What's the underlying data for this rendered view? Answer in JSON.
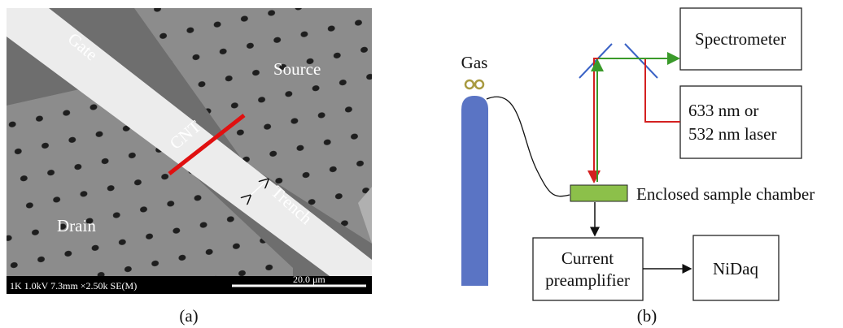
{
  "panel_a": {
    "labels": {
      "gate": "Gate",
      "source": "Source",
      "cnt": "CNT",
      "drain": "Drain",
      "trench": "Trench"
    },
    "info_bar": "1K 1.0kV 7.3mm ×2.50k SE(M)",
    "scale_bar": "20.0 μm",
    "caption": "(a)"
  },
  "panel_b": {
    "gas": "Gas",
    "spectrometer": "Spectrometer",
    "laser": [
      "633 nm or",
      "532 nm laser"
    ],
    "chamber": "Enclosed sample chamber",
    "preamplifier": [
      "Current",
      "preamplifier"
    ],
    "daq": "NiDaq",
    "caption": "(b)"
  }
}
